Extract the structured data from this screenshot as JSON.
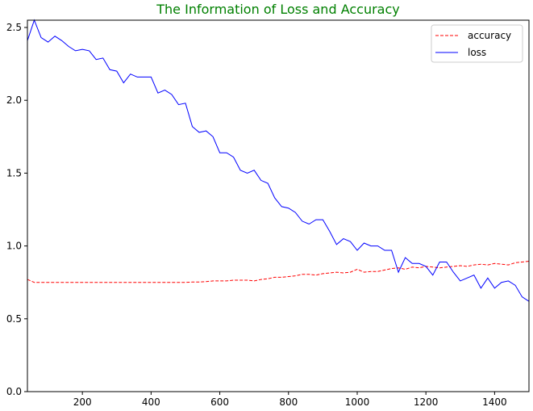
{
  "chart_data": {
    "type": "line",
    "title": "The Information of Loss and Accuracy",
    "xlabel": "",
    "ylabel": "",
    "xlim": [
      40,
      1500
    ],
    "ylim": [
      0,
      2.55
    ],
    "xticks": [
      200,
      400,
      600,
      800,
      1000,
      1200,
      1400
    ],
    "yticks": [
      0.0,
      0.5,
      1.0,
      1.5,
      2.0,
      2.5
    ],
    "xtick_labels": [
      "200",
      "400",
      "600",
      "800",
      "1000",
      "1200",
      "1400"
    ],
    "ytick_labels": [
      "0.0",
      "0.5",
      "1.0",
      "1.5",
      "2.0",
      "2.5"
    ],
    "grid": false,
    "legend_position": "top-right",
    "series": [
      {
        "name": "accuracy",
        "color": "#ff0000",
        "style": "dashed",
        "x": [
          40,
          60,
          80,
          100,
          120,
          140,
          160,
          180,
          200,
          220,
          240,
          260,
          280,
          300,
          320,
          340,
          360,
          380,
          400,
          420,
          440,
          460,
          480,
          500,
          520,
          540,
          560,
          580,
          600,
          620,
          640,
          660,
          680,
          700,
          720,
          740,
          760,
          780,
          800,
          820,
          840,
          860,
          880,
          900,
          920,
          940,
          960,
          980,
          1000,
          1020,
          1040,
          1060,
          1080,
          1100,
          1120,
          1140,
          1160,
          1180,
          1200,
          1220,
          1240,
          1260,
          1280,
          1300,
          1320,
          1340,
          1360,
          1380,
          1400,
          1420,
          1440,
          1460,
          1480,
          1500
        ],
        "values": [
          0.77,
          0.75,
          0.75,
          0.75,
          0.75,
          0.75,
          0.75,
          0.75,
          0.75,
          0.75,
          0.75,
          0.75,
          0.75,
          0.75,
          0.75,
          0.75,
          0.75,
          0.75,
          0.75,
          0.75,
          0.75,
          0.75,
          0.75,
          0.75,
          0.752,
          0.752,
          0.755,
          0.76,
          0.76,
          0.76,
          0.765,
          0.765,
          0.765,
          0.76,
          0.77,
          0.775,
          0.785,
          0.785,
          0.79,
          0.795,
          0.805,
          0.805,
          0.8,
          0.81,
          0.815,
          0.82,
          0.815,
          0.82,
          0.84,
          0.82,
          0.825,
          0.825,
          0.835,
          0.845,
          0.85,
          0.84,
          0.855,
          0.85,
          0.86,
          0.855,
          0.85,
          0.855,
          0.86,
          0.865,
          0.86,
          0.87,
          0.875,
          0.87,
          0.88,
          0.875,
          0.87,
          0.885,
          0.89,
          0.895
        ]
      },
      {
        "name": "loss",
        "color": "#0000ff",
        "style": "solid",
        "x": [
          40,
          60,
          80,
          100,
          120,
          140,
          160,
          180,
          200,
          220,
          240,
          260,
          280,
          300,
          320,
          340,
          360,
          380,
          400,
          420,
          440,
          460,
          480,
          500,
          520,
          540,
          560,
          580,
          600,
          620,
          640,
          660,
          680,
          700,
          720,
          740,
          760,
          780,
          800,
          820,
          840,
          860,
          880,
          900,
          920,
          940,
          960,
          980,
          1000,
          1020,
          1040,
          1060,
          1080,
          1100,
          1120,
          1140,
          1160,
          1180,
          1200,
          1220,
          1240,
          1260,
          1280,
          1300,
          1320,
          1340,
          1360,
          1380,
          1400,
          1420,
          1440,
          1460,
          1480,
          1500
        ],
        "values": [
          2.41,
          2.55,
          2.43,
          2.4,
          2.44,
          2.41,
          2.37,
          2.34,
          2.35,
          2.34,
          2.28,
          2.29,
          2.21,
          2.2,
          2.12,
          2.18,
          2.16,
          2.16,
          2.16,
          2.05,
          2.07,
          2.04,
          1.97,
          1.98,
          1.82,
          1.78,
          1.79,
          1.75,
          1.64,
          1.64,
          1.61,
          1.52,
          1.5,
          1.52,
          1.45,
          1.43,
          1.33,
          1.27,
          1.26,
          1.23,
          1.17,
          1.15,
          1.18,
          1.18,
          1.1,
          1.01,
          1.05,
          1.03,
          0.97,
          1.02,
          1.0,
          1.0,
          0.97,
          0.97,
          0.82,
          0.92,
          0.88,
          0.88,
          0.86,
          0.8,
          0.89,
          0.89,
          0.82,
          0.76,
          0.78,
          0.8,
          0.71,
          0.78,
          0.71,
          0.75,
          0.76,
          0.73,
          0.65,
          0.62
        ]
      }
    ]
  }
}
